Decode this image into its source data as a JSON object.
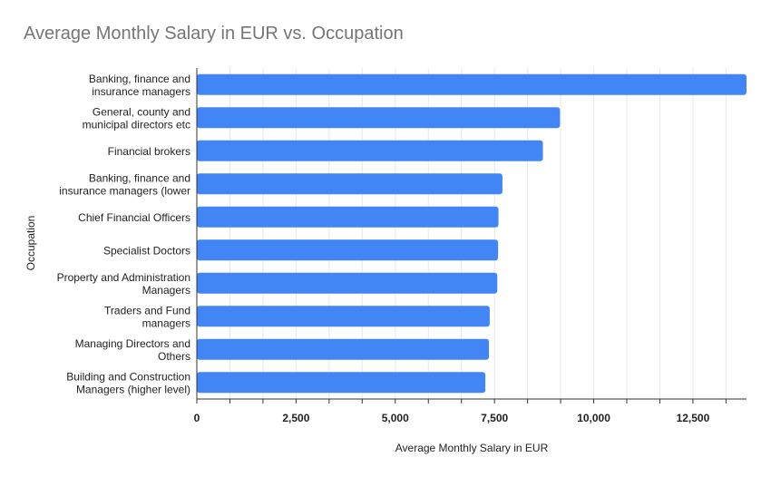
{
  "chart_data": {
    "type": "bar",
    "orientation": "horizontal",
    "title": "Average Monthly Salary in EUR vs. Occupation",
    "xlabel": "Average Monthly Salary in EUR",
    "ylabel": "Occupation",
    "categories": [
      [
        "Banking, finance and",
        "insurance managers"
      ],
      [
        "General, county and",
        "municipal directors etc"
      ],
      [
        "Financial brokers"
      ],
      [
        "Banking, finance and",
        "insurance managers (lower"
      ],
      [
        "Chief Financial Officers"
      ],
      [
        "Specialist Doctors"
      ],
      [
        "Property and Administration",
        "Managers"
      ],
      [
        "Traders and Fund",
        "managers"
      ],
      [
        "Managing Directors and",
        "Others"
      ],
      [
        "Building and Construction",
        "Managers (higher level)"
      ]
    ],
    "values": [
      13850,
      9150,
      8720,
      7700,
      7600,
      7590,
      7570,
      7380,
      7360,
      7270
    ],
    "xlim": [
      0,
      13850
    ],
    "x_ticks": [
      0,
      2500,
      5000,
      7500,
      10000,
      12500
    ],
    "x_tick_labels": [
      "0",
      "2,500",
      "5,000",
      "7,500",
      "10,000",
      "12,500"
    ],
    "minor_grid_step": 833.33,
    "grid": true,
    "legend": "none",
    "bar_color": "#4285f4"
  }
}
